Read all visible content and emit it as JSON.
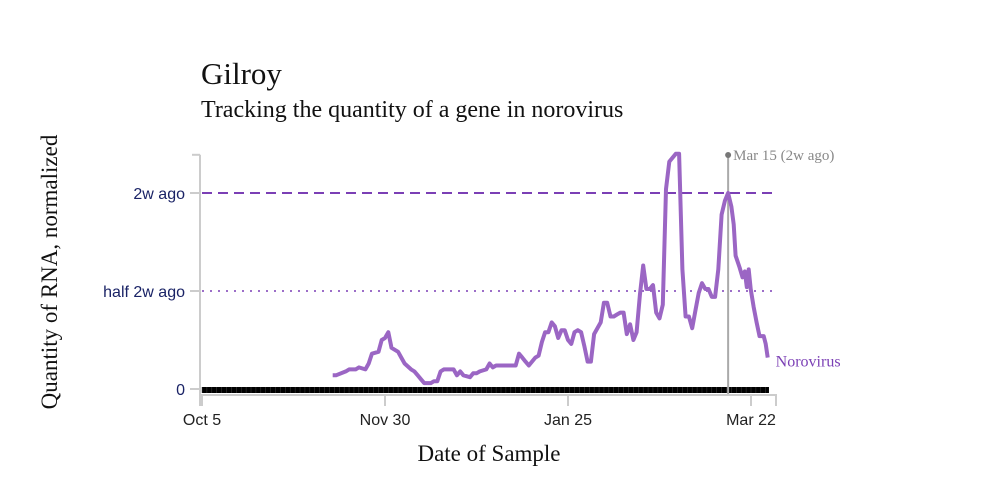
{
  "chart_data": {
    "type": "line",
    "title": "Gilroy",
    "subtitle": "Tracking the quantity of a gene in norovirus",
    "xlabel": "Date of Sample",
    "ylabel": "Quantity of RNA, normalized",
    "x_units": "days since Oct 5",
    "xlim": [
      0,
      175
    ],
    "ylim": [
      0,
      1.2
    ],
    "x_ticks": [
      {
        "day": 0,
        "label": "Oct 5"
      },
      {
        "day": 56,
        "label": "Nov 30"
      },
      {
        "day": 112,
        "label": "Jan 25"
      },
      {
        "day": 168,
        "label": "Mar 22"
      }
    ],
    "y_ticks": [
      {
        "value": 0,
        "label": "0"
      },
      {
        "value": 0.5,
        "label": "half 2w ago"
      },
      {
        "value": 1,
        "label": "2w ago"
      }
    ],
    "reference_lines": [
      {
        "value": 1,
        "style": "dashed"
      },
      {
        "value": 0.5,
        "style": "dotted"
      }
    ],
    "marker": {
      "day": 161,
      "label": "Mar 15 (2w ago)"
    },
    "colors": {
      "series": "#9b66c4",
      "ref": "#7b3fb5",
      "ticklabel": "#1a2366",
      "marker": "#888888"
    },
    "series": [
      {
        "name": "Norovirus",
        "x": [
          40,
          41,
          44,
          45,
          47,
          48,
          50,
          51,
          52,
          54,
          55,
          56,
          57,
          58,
          60,
          61,
          62,
          64,
          65,
          66,
          67,
          68,
          70,
          71,
          72,
          73,
          74,
          76,
          77,
          78,
          79,
          80,
          82,
          83,
          84,
          85,
          87,
          88,
          89,
          90,
          91,
          92,
          94,
          95,
          96,
          97,
          98,
          99,
          100,
          102,
          103,
          104,
          105,
          106,
          107,
          108,
          109,
          110,
          111,
          112,
          113,
          114,
          115,
          116,
          117,
          118,
          119,
          120,
          122,
          123,
          124,
          125,
          126,
          127,
          128,
          129,
          130,
          131,
          132,
          133,
          134,
          135,
          136,
          137,
          138,
          139,
          140,
          141,
          142,
          143,
          145,
          146,
          147,
          148,
          149,
          150,
          151,
          152,
          153,
          154,
          155,
          156,
          157,
          158,
          159,
          160,
          161,
          162,
          162.7,
          163.3,
          164.5,
          165.4,
          166.1,
          166.7,
          167.3,
          167.9,
          168.8,
          169.7,
          170.6,
          171.3,
          171.9,
          172.5,
          173.1
        ],
        "values": [
          0.07,
          0.07,
          0.09,
          0.1,
          0.1,
          0.11,
          0.1,
          0.13,
          0.18,
          0.19,
          0.25,
          0.26,
          0.29,
          0.21,
          0.19,
          0.16,
          0.13,
          0.1,
          0.09,
          0.07,
          0.05,
          0.03,
          0.03,
          0.04,
          0.04,
          0.09,
          0.1,
          0.1,
          0.1,
          0.07,
          0.09,
          0.07,
          0.06,
          0.08,
          0.08,
          0.09,
          0.1,
          0.13,
          0.11,
          0.12,
          0.12,
          0.12,
          0.12,
          0.12,
          0.12,
          0.18,
          0.16,
          0.14,
          0.12,
          0.16,
          0.17,
          0.24,
          0.29,
          0.29,
          0.34,
          0.32,
          0.26,
          0.3,
          0.3,
          0.25,
          0.23,
          0.29,
          0.3,
          0.29,
          0.22,
          0.14,
          0.14,
          0.28,
          0.34,
          0.44,
          0.44,
          0.37,
          0.37,
          0.38,
          0.39,
          0.39,
          0.28,
          0.33,
          0.25,
          0.29,
          0.48,
          0.63,
          0.51,
          0.51,
          0.53,
          0.39,
          0.36,
          0.43,
          1.02,
          1.16,
          1.2,
          1.2,
          0.61,
          0.37,
          0.37,
          0.31,
          0.4,
          0.49,
          0.54,
          0.51,
          0.51,
          0.47,
          0.47,
          0.61,
          0.89,
          0.96,
          1.0,
          0.93,
          0.84,
          0.68,
          0.62,
          0.57,
          0.6,
          0.52,
          0.61,
          0.51,
          0.42,
          0.34,
          0.27,
          0.27,
          0.27,
          0.23,
          0.16
        ]
      }
    ]
  }
}
